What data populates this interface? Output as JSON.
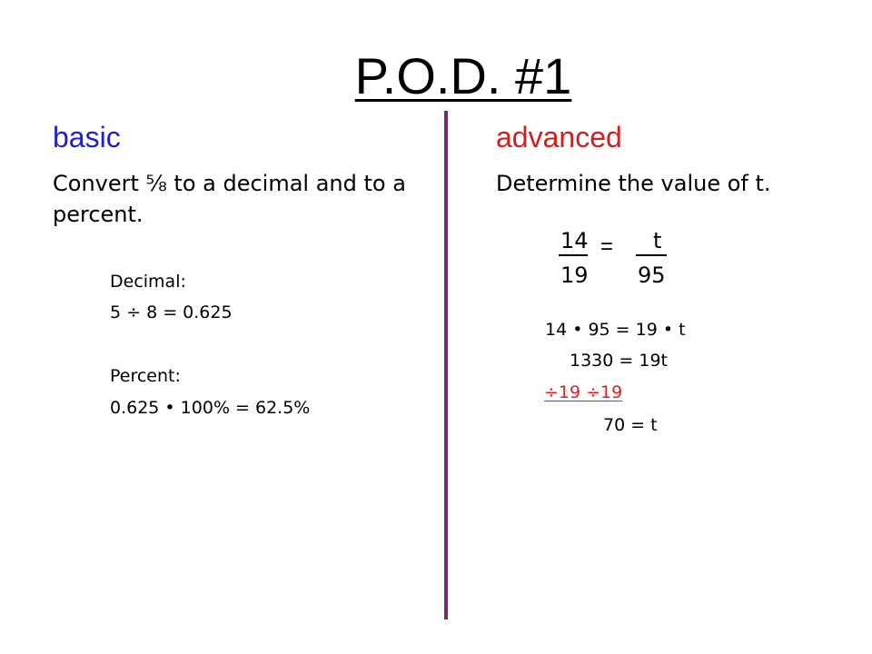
{
  "title": "P.O.D. #1",
  "basic": {
    "heading": "basic",
    "problem": "Convert ⅝ to a decimal and to a percent.",
    "decimal_label": "Decimal:",
    "decimal_equation": "5 ÷ 8 = 0.625",
    "percent_label": "Percent:",
    "percent_equation": "0.625 • 100% = 62.5%"
  },
  "advanced": {
    "heading": "advanced",
    "problem": "Determine the value of t.",
    "fraction_left": {
      "numerator": "14",
      "denominator": "19"
    },
    "equals": "=",
    "fraction_right": {
      "numerator": "t",
      "denominator": "95"
    },
    "steps": [
      "14 • 95 = 19 • t",
      "1330 = 19t",
      "÷19      ÷19",
      "70 = t"
    ]
  },
  "colors": {
    "basic_heading": "#1f1fd0",
    "advanced_heading": "#d01f1f",
    "divider": "#7a2a6a",
    "division_step": "#e02020"
  }
}
